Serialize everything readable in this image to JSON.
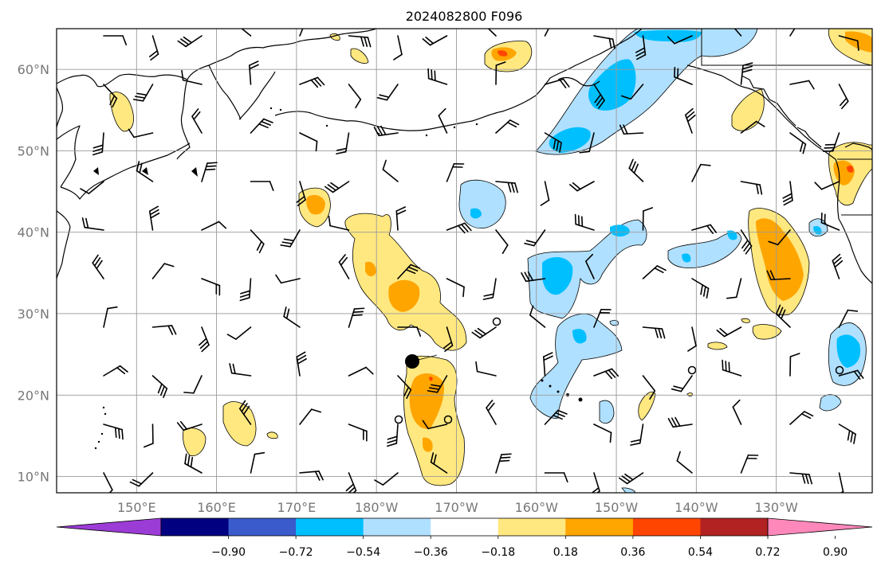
{
  "title": "2024082800 F096",
  "map": {
    "lat_ticks": [
      {
        "lat": 60,
        "label": "60°N"
      },
      {
        "lat": 50,
        "label": "50°N"
      },
      {
        "lat": 40,
        "label": "40°N"
      },
      {
        "lat": 30,
        "label": "30°N"
      },
      {
        "lat": 20,
        "label": "20°N"
      },
      {
        "lat": 10,
        "label": "10°N"
      }
    ],
    "lon_ticks": [
      {
        "lon": 150,
        "label": "150°E"
      },
      {
        "lon": 160,
        "label": "160°E"
      },
      {
        "lon": 170,
        "label": "170°E"
      },
      {
        "lon": 180,
        "label": "180°W"
      },
      {
        "lon": 190,
        "label": "170°W"
      },
      {
        "lon": 200,
        "label": "160°W"
      },
      {
        "lon": 210,
        "label": "150°W"
      },
      {
        "lon": 220,
        "label": "140°W"
      },
      {
        "lon": 230,
        "label": "130°W"
      }
    ],
    "lat_range": [
      8,
      65
    ],
    "lon_range": [
      140,
      242
    ]
  },
  "colorbar": {
    "labels": [
      "−0.90",
      "−0.72",
      "−0.54",
      "−0.36",
      "−0.18",
      "0.18",
      "0.36",
      "0.54",
      "0.72",
      "0.90"
    ],
    "colors": [
      "#9c3cd6",
      "#000080",
      "#3a5bcc",
      "#00bfff",
      "#b0e0ff",
      "#ffffff",
      "#ffe880",
      "#ffa500",
      "#ff4500",
      "#b22222",
      "#ff88bb"
    ]
  },
  "colors": {
    "light_blue": "#b0e0ff",
    "blue": "#00bfff",
    "light_yellow": "#ffe880",
    "orange": "#ffa500",
    "red": "#ff4500"
  }
}
